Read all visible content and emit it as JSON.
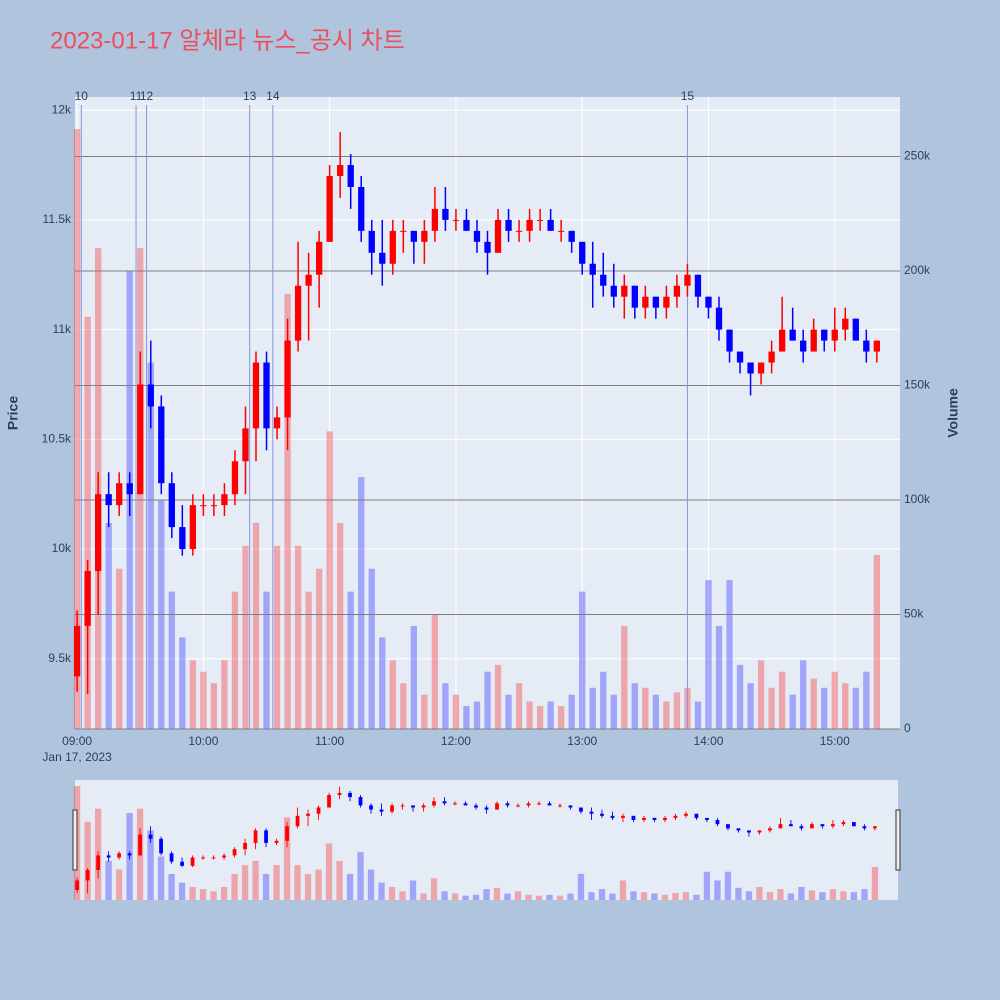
{
  "chart_data": {
    "type": "candlestick",
    "title": "2023-01-17 알체라 뉴스_공시 차트",
    "y_label": "Price",
    "y2_label": "Volume",
    "x_date_label": "Jan 17, 2023",
    "increasing_color": "#ff0000",
    "decreasing_color": "#0000ff",
    "x": [
      "09:00",
      "09:05",
      "09:10",
      "09:15",
      "09:20",
      "09:25",
      "09:30",
      "09:35",
      "09:40",
      "09:45",
      "09:50",
      "09:55",
      "10:00",
      "10:05",
      "10:10",
      "10:15",
      "10:20",
      "10:25",
      "10:30",
      "10:35",
      "10:40",
      "10:45",
      "10:50",
      "10:55",
      "11:00",
      "11:05",
      "11:10",
      "11:15",
      "11:20",
      "11:25",
      "11:30",
      "11:35",
      "11:40",
      "11:45",
      "11:50",
      "11:55",
      "12:00",
      "12:05",
      "12:10",
      "12:15",
      "12:20",
      "12:25",
      "12:30",
      "12:35",
      "12:40",
      "12:45",
      "12:50",
      "12:55",
      "13:00",
      "13:05",
      "13:10",
      "13:15",
      "13:20",
      "13:25",
      "13:30",
      "13:35",
      "13:40",
      "13:45",
      "13:50",
      "13:55",
      "14:00",
      "14:05",
      "14:10",
      "14:15",
      "14:20",
      "14:25",
      "14:30",
      "14:35",
      "14:40",
      "14:45",
      "14:50",
      "14:55",
      "15:00",
      "15:05",
      "15:10",
      "15:15",
      "15:20"
    ],
    "open": [
      9420,
      9650,
      9900,
      10250,
      10200,
      10300,
      10250,
      10750,
      10650,
      10300,
      10100,
      10000,
      10200,
      10200,
      10200,
      10250,
      10400,
      10550,
      10850,
      10550,
      10600,
      10950,
      11200,
      11250,
      11400,
      11700,
      11750,
      11650,
      11450,
      11350,
      11300,
      11450,
      11450,
      11400,
      11450,
      11550,
      11500,
      11500,
      11450,
      11400,
      11350,
      11500,
      11450,
      11450,
      11500,
      11500,
      11450,
      11450,
      11400,
      11300,
      11250,
      11200,
      11150,
      11200,
      11100,
      11150,
      11100,
      11150,
      11200,
      11250,
      11150,
      11100,
      11000,
      10900,
      10850,
      10800,
      10850,
      10900,
      11000,
      10950,
      10900,
      11000,
      10950,
      11000,
      11050,
      10950,
      10900
    ],
    "high": [
      9720,
      9950,
      10350,
      10350,
      10350,
      10350,
      10900,
      10950,
      10700,
      10350,
      10200,
      10250,
      10250,
      10250,
      10300,
      10450,
      10650,
      10900,
      10900,
      10650,
      11050,
      11400,
      11350,
      11450,
      11750,
      11900,
      11800,
      11700,
      11500,
      11500,
      11500,
      11500,
      11450,
      11500,
      11650,
      11650,
      11550,
      11550,
      11500,
      11450,
      11550,
      11550,
      11500,
      11550,
      11550,
      11550,
      11500,
      11450,
      11400,
      11400,
      11350,
      11300,
      11250,
      11200,
      11200,
      11150,
      11200,
      11250,
      11300,
      11250,
      11150,
      11150,
      11000,
      10900,
      10850,
      10850,
      10950,
      11150,
      11100,
      11000,
      11050,
      11000,
      11100,
      11100,
      11050,
      11000,
      10950
    ],
    "low": [
      9350,
      9340,
      9700,
      10100,
      10150,
      10150,
      10250,
      10550,
      10250,
      10050,
      9970,
      9970,
      10150,
      10150,
      10150,
      10200,
      10250,
      10400,
      10450,
      10500,
      10450,
      10900,
      10950,
      11100,
      11400,
      11600,
      11550,
      11400,
      11250,
      11200,
      11250,
      11350,
      11300,
      11300,
      11400,
      11450,
      11450,
      11450,
      11350,
      11250,
      11350,
      11400,
      11400,
      11400,
      11450,
      11450,
      11400,
      11350,
      11250,
      11100,
      11150,
      11100,
      11050,
      11050,
      11050,
      11050,
      11050,
      11100,
      11150,
      11100,
      11050,
      10950,
      10850,
      10800,
      10700,
      10750,
      10800,
      10900,
      10950,
      10850,
      10900,
      10900,
      10900,
      10950,
      10950,
      10850,
      10850
    ],
    "close": [
      9650,
      9900,
      10250,
      10200,
      10300,
      10250,
      10750,
      10650,
      10300,
      10100,
      10000,
      10200,
      10200,
      10200,
      10250,
      10400,
      10550,
      10850,
      10550,
      10600,
      10950,
      11200,
      11250,
      11400,
      11700,
      11750,
      11650,
      11450,
      11350,
      11300,
      11450,
      11450,
      11400,
      11450,
      11550,
      11500,
      11500,
      11450,
      11400,
      11350,
      11500,
      11450,
      11450,
      11500,
      11500,
      11450,
      11450,
      11400,
      11300,
      11250,
      11200,
      11150,
      11200,
      11100,
      11150,
      11100,
      11150,
      11200,
      11250,
      11150,
      11100,
      11000,
      10900,
      10850,
      10800,
      10850,
      10900,
      11000,
      10950,
      10900,
      11000,
      10950,
      11000,
      11050,
      10950,
      10900,
      10950
    ],
    "volume": [
      262000,
      180000,
      210000,
      90000,
      70000,
      200000,
      210000,
      160000,
      100000,
      60000,
      40000,
      30000,
      25000,
      20000,
      30000,
      60000,
      80000,
      90000,
      60000,
      80000,
      190000,
      80000,
      60000,
      70000,
      130000,
      90000,
      60000,
      110000,
      70000,
      40000,
      30000,
      20000,
      45000,
      15000,
      50000,
      20000,
      15000,
      10000,
      12000,
      25000,
      28000,
      15000,
      20000,
      12000,
      10000,
      12000,
      10000,
      15000,
      60000,
      18000,
      25000,
      15000,
      45000,
      20000,
      18000,
      15000,
      12000,
      16000,
      18000,
      12000,
      65000,
      45000,
      65000,
      28000,
      20000,
      30000,
      18000,
      25000,
      15000,
      30000,
      22000,
      18000,
      25000,
      20000,
      18000,
      25000,
      76000
    ],
    "annotations": [
      {
        "x": "09:02",
        "text": "10"
      },
      {
        "x": "09:28",
        "text": "11"
      },
      {
        "x": "09:33",
        "text": "12"
      },
      {
        "x": "10:22",
        "text": "13"
      },
      {
        "x": "10:33",
        "text": "14"
      },
      {
        "x": "13:50",
        "text": "15"
      }
    ],
    "xlim": [
      "08:59",
      "15:31"
    ],
    "xticks": [
      "09:00",
      "10:00",
      "11:00",
      "12:00",
      "13:00",
      "14:00",
      "15:00"
    ],
    "ylim": [
      9180,
      12060
    ],
    "yticks": [
      {
        "value": 9500,
        "label": "9.5k"
      },
      {
        "value": 10000,
        "label": "10k"
      },
      {
        "value": 10500,
        "label": "10.5k"
      },
      {
        "value": 11000,
        "label": "11k"
      },
      {
        "value": 11500,
        "label": "11.5k"
      },
      {
        "value": 12000,
        "label": "12k"
      }
    ],
    "y2lim": [
      0,
      276000
    ],
    "y2ticks": [
      0,
      {
        "value": 50000,
        "label": "50k"
      },
      {
        "value": 100000,
        "label": "100k"
      },
      {
        "value": 150000,
        "label": "150k"
      },
      {
        "value": 200000,
        "label": "200k"
      },
      {
        "value": 250000,
        "label": "250k"
      }
    ],
    "grid": true,
    "rangeslider": true
  }
}
